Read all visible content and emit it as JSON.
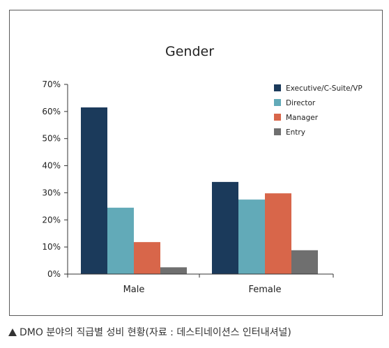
{
  "chart_data": {
    "type": "bar",
    "title": "Gender",
    "categories": [
      "Male",
      "Female"
    ],
    "series": [
      {
        "name": "Executive/C-Suite/VP",
        "color": "#1b3a5b",
        "values": [
          61.5,
          34
        ]
      },
      {
        "name": "Director",
        "color": "#62aab8",
        "values": [
          24.5,
          27.5
        ]
      },
      {
        "name": "Manager",
        "color": "#d8664a",
        "values": [
          11.8,
          29.8
        ]
      },
      {
        "name": "Entry",
        "color": "#6f6f6f",
        "values": [
          2.5,
          8.8
        ]
      }
    ],
    "ylim": [
      0,
      70
    ],
    "yticks": [
      "0%",
      "10%",
      "20%",
      "30%",
      "40%",
      "50%",
      "60%",
      "70%"
    ],
    "ytick_values": [
      0,
      10,
      20,
      30,
      40,
      50,
      60,
      70
    ],
    "xlabel": "",
    "ylabel": "",
    "legend_position": "top-right",
    "grid": false
  },
  "caption": {
    "text": "DMO 분야의 직급별 성비 현황(자료 : 데스티네이션스 인터내셔널)"
  }
}
